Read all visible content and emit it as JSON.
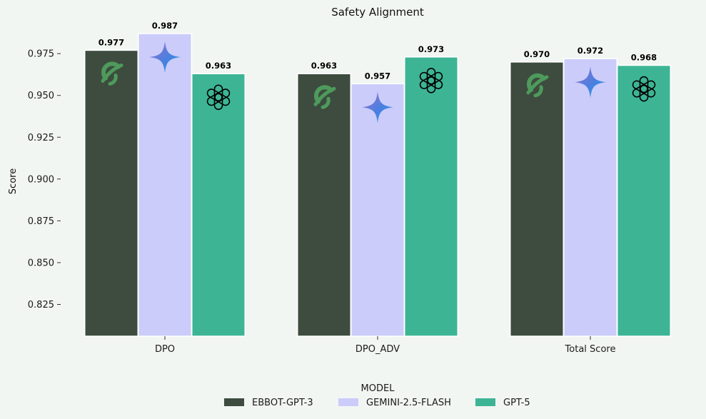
{
  "chart_data": {
    "type": "bar",
    "title": "Safety Alignment",
    "xlabel": "",
    "ylabel": "Score",
    "ylim": [
      0.806,
      0.99
    ],
    "yticks": [
      0.825,
      0.85,
      0.875,
      0.9,
      0.925,
      0.95,
      0.975
    ],
    "ytick_labels": [
      "0.825",
      "0.850",
      "0.875",
      "0.900",
      "0.925",
      "0.950",
      "0.975"
    ],
    "categories": [
      "DPO",
      "DPO_ADV",
      "Total Score"
    ],
    "series": [
      {
        "name": "EBBOT-GPT-3",
        "color": "#3d4c3f",
        "icon": "ebbot-leaf-icon",
        "values": [
          0.977,
          0.963,
          0.97
        ],
        "labels": [
          "0.977",
          "0.963",
          "0.970"
        ]
      },
      {
        "name": "GEMINI-2.5-FLASH",
        "color": "#cbccfa",
        "icon": "gemini-sparkle-icon",
        "values": [
          0.987,
          0.957,
          0.972
        ],
        "labels": [
          "0.987",
          "0.957",
          "0.972"
        ]
      },
      {
        "name": "GPT-5",
        "color": "#3db595",
        "icon": "openai-knot-icon",
        "values": [
          0.963,
          0.973,
          0.968
        ],
        "labels": [
          "0.963",
          "0.973",
          "0.968"
        ]
      }
    ],
    "legend_title": "MODEL",
    "legend_position": "bottom-center",
    "grid": false
  }
}
